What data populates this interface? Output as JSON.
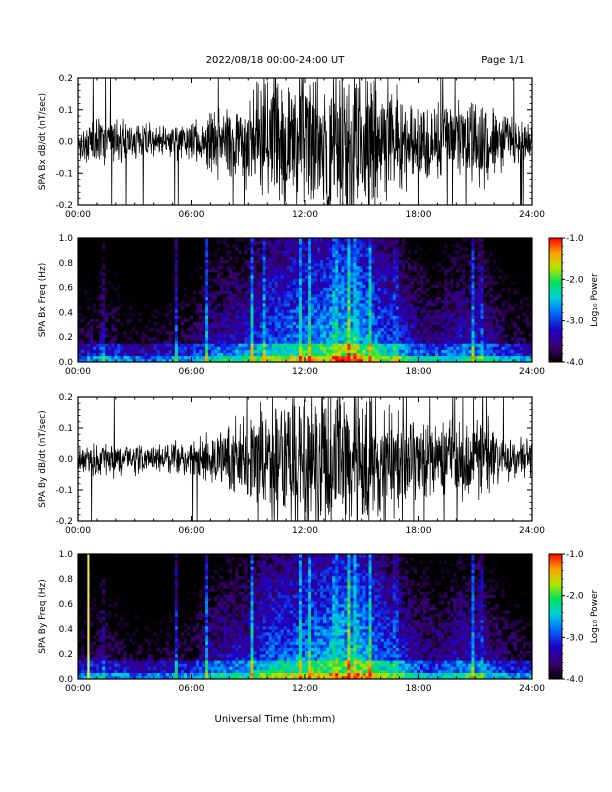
{
  "header": {
    "title": "2022/08/18  00:00-24:00 UT",
    "page": "Page 1/1"
  },
  "footer": {
    "xlabel": "Universal Time (hh:mm)"
  },
  "colorbar": {
    "label": "Log₁₀ Power",
    "ticks": [
      "-1.0",
      "-2.0",
      "-3.0",
      "-4.0"
    ],
    "range": [
      -4.0,
      -1.0
    ]
  },
  "chart_data": [
    {
      "type": "line",
      "ylabel": "SPA Bx dB/dt (nT/sec)",
      "xlim": [
        0,
        24
      ],
      "ylim": [
        -0.2,
        0.2
      ],
      "xtick_labels": [
        "00:00",
        "06:00",
        "12:00",
        "18:00",
        "24:00"
      ],
      "ytick_labels": [
        "0.2",
        "0.1",
        "0.0",
        "-0.1",
        "-0.2"
      ],
      "envelope": {
        "hours": [
          0,
          1,
          2,
          3,
          4,
          5,
          6,
          7,
          8,
          9,
          10,
          11,
          12,
          13,
          14,
          15,
          16,
          17,
          18,
          19,
          20,
          21,
          22,
          23,
          24
        ],
        "amplitude": [
          0.05,
          0.06,
          0.06,
          0.05,
          0.05,
          0.05,
          0.06,
          0.09,
          0.11,
          0.14,
          0.19,
          0.21,
          0.2,
          0.21,
          0.22,
          0.21,
          0.18,
          0.15,
          0.11,
          0.1,
          0.12,
          0.14,
          0.1,
          0.07,
          0.05
        ]
      }
    },
    {
      "type": "heatmap",
      "ylabel": "SPA Bx Freq (Hz)",
      "xlim": [
        0,
        24
      ],
      "ylim": [
        0.0,
        1.0
      ],
      "zlim": [
        -4.0,
        -1.0
      ],
      "xtick_labels": [
        "00:00",
        "06:00",
        "12:00",
        "18:00",
        "24:00"
      ],
      "ytick_labels": [
        "1.0",
        "0.8",
        "0.6",
        "0.4",
        "0.2",
        "0.0"
      ],
      "activity": {
        "hours": [
          0,
          1,
          2,
          3,
          4,
          5,
          6,
          7,
          8,
          9,
          10,
          11,
          12,
          13,
          14,
          15,
          16,
          17,
          18,
          19,
          20,
          21,
          22,
          23,
          24
        ],
        "level": [
          -3.5,
          -3.4,
          -3.4,
          -3.6,
          -3.6,
          -3.5,
          -3.4,
          -3.1,
          -3.0,
          -2.9,
          -2.6,
          -2.5,
          -2.4,
          -2.3,
          -2.1,
          -2.2,
          -2.5,
          -2.8,
          -3.1,
          -3.2,
          -3.0,
          -2.9,
          -3.2,
          -3.4,
          -3.5
        ]
      },
      "bursts_hours": [
        1.3,
        5.2,
        6.8,
        9.2,
        9.8,
        11.8,
        12.2,
        13.6,
        14.3,
        14.7,
        15.4,
        16.8,
        20.9,
        21.3
      ]
    },
    {
      "type": "line",
      "ylabel": "SPA By dB/dt (nT/sec)",
      "xlim": [
        0,
        24
      ],
      "ylim": [
        -0.2,
        0.2
      ],
      "xtick_labels": [
        "00:00",
        "06:00",
        "12:00",
        "18:00",
        "24:00"
      ],
      "ytick_labels": [
        "0.2",
        "0.1",
        "0.0",
        "-0.1",
        "-0.2"
      ],
      "envelope": {
        "hours": [
          0,
          1,
          2,
          3,
          4,
          5,
          6,
          7,
          8,
          9,
          10,
          11,
          12,
          13,
          14,
          15,
          16,
          17,
          18,
          19,
          20,
          21,
          22,
          23,
          24
        ],
        "amplitude": [
          0.04,
          0.05,
          0.05,
          0.05,
          0.04,
          0.05,
          0.05,
          0.08,
          0.1,
          0.13,
          0.17,
          0.2,
          0.21,
          0.22,
          0.21,
          0.2,
          0.18,
          0.15,
          0.11,
          0.1,
          0.11,
          0.13,
          0.1,
          0.07,
          0.05
        ]
      }
    },
    {
      "type": "heatmap",
      "ylabel": "SPA By Freq (Hz)",
      "xlim": [
        0,
        24
      ],
      "ylim": [
        0.0,
        1.0
      ],
      "zlim": [
        -4.0,
        -1.0
      ],
      "xtick_labels": [
        "00:00",
        "06:00",
        "12:00",
        "18:00",
        "24:00"
      ],
      "ytick_labels": [
        "1.0",
        "0.8",
        "0.6",
        "0.4",
        "0.2",
        "0.0"
      ],
      "activity": {
        "hours": [
          0,
          1,
          2,
          3,
          4,
          5,
          6,
          7,
          8,
          9,
          10,
          11,
          12,
          13,
          14,
          15,
          16,
          17,
          18,
          19,
          20,
          21,
          22,
          23,
          24
        ],
        "level": [
          -3.5,
          -3.4,
          -3.4,
          -3.6,
          -3.6,
          -3.5,
          -3.4,
          -3.1,
          -3.0,
          -2.9,
          -2.6,
          -2.5,
          -2.4,
          -2.3,
          -2.1,
          -2.2,
          -2.5,
          -2.8,
          -3.1,
          -3.2,
          -3.0,
          -2.9,
          -3.2,
          -3.4,
          -3.5
        ]
      },
      "bursts_hours": [
        0.6,
        1.3,
        5.2,
        6.8,
        9.2,
        11.8,
        12.2,
        13.6,
        14.3,
        14.7,
        15.4,
        16.8,
        20.9,
        21.3
      ],
      "line_hours": [
        0.55
      ]
    }
  ]
}
